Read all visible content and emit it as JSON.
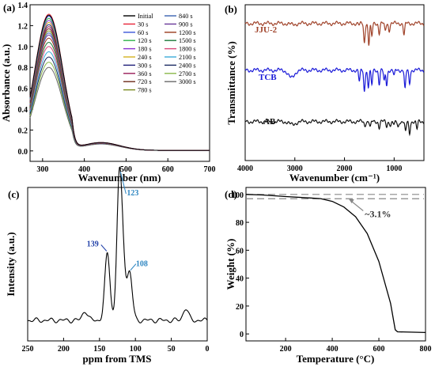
{
  "colors": {
    "axis": "#000000",
    "jju": "#A0432A",
    "tcb": "#1A1AD8",
    "ab": "#111111",
    "nmr_label": "#2E86C1",
    "nmr_label_139": "#1F3FA8",
    "dash": "#888888"
  },
  "chart_data": [
    {
      "panel_label": "(a)",
      "type": "line",
      "xlabel": "Wavenumber",
      "xunit": "(nm)",
      "ylabel": "Absorbance (a.u.)",
      "xlim": [
        270,
        700
      ],
      "ylim": [
        -0.1,
        1.4
      ],
      "xticks": [
        "300",
        "400",
        "500",
        "600",
        "700"
      ],
      "yticks": [
        "0.0",
        "0.2",
        "0.4",
        "0.6",
        "0.8",
        "1.0",
        "1.2",
        "1.4"
      ],
      "legend_position": "top-right",
      "series": [
        {
          "name": "Initial",
          "color": "#000000",
          "peak": 1.3,
          "peak2": 0.075
        },
        {
          "name": "30 s",
          "color": "#E8263A",
          "peak": 1.31,
          "peak2": 0.075
        },
        {
          "name": "60 s",
          "color": "#3A55D8",
          "peak": 1.29,
          "peak2": 0.074
        },
        {
          "name": "120 s",
          "color": "#2FB24A",
          "peak": 1.27,
          "peak2": 0.074
        },
        {
          "name": "180 s",
          "color": "#8B2FD0",
          "peak": 1.25,
          "peak2": 0.073
        },
        {
          "name": "240 s",
          "color": "#D4B21E",
          "peak": 1.23,
          "peak2": 0.072
        },
        {
          "name": "300 s",
          "color": "#1E1E78",
          "peak": 1.21,
          "peak2": 0.072
        },
        {
          "name": "360 s",
          "color": "#9A1E5A",
          "peak": 1.19,
          "peak2": 0.071
        },
        {
          "name": "720 s",
          "color": "#6E2A1A",
          "peak": 1.17,
          "peak2": 0.07
        },
        {
          "name": "780 s",
          "color": "#7A8A1E",
          "peak": 1.15,
          "peak2": 0.07
        },
        {
          "name": "840 s",
          "color": "#3A62B0",
          "peak": 1.13,
          "peak2": 0.069
        },
        {
          "name": "900 s",
          "color": "#6A3A9A",
          "peak": 1.11,
          "peak2": 0.068
        },
        {
          "name": "1200 s",
          "color": "#9A3A1E",
          "peak": 1.08,
          "peak2": 0.067
        },
        {
          "name": "1500 s",
          "color": "#1E7A3A",
          "peak": 1.04,
          "peak2": 0.066
        },
        {
          "name": "1800 s",
          "color": "#D8487A",
          "peak": 1.0,
          "peak2": 0.065
        },
        {
          "name": "2100 s",
          "color": "#3AAAD8",
          "peak": 0.95,
          "peak2": 0.064
        },
        {
          "name": "2400 s",
          "color": "#1A2A62",
          "peak": 0.9,
          "peak2": 0.063
        },
        {
          "name": "2700 s",
          "color": "#8AB84A",
          "peak": 0.85,
          "peak2": 0.062
        },
        {
          "name": "3000 s",
          "color": "#6A6A6A",
          "peak": 0.8,
          "peak2": 0.061
        }
      ]
    },
    {
      "panel_label": "(b)",
      "type": "line",
      "xlabel": "Wavenumber (cm⁻¹)",
      "ylabel": "Transmittance (%)",
      "xlim": [
        4000,
        400
      ],
      "xticks": [
        "4000",
        "3000",
        "2000",
        "1000"
      ],
      "series": [
        {
          "name": "JJU-2",
          "color_key": "jju",
          "baseline": 0.88,
          "dips": [
            [
              3050,
              0.03
            ],
            [
              1700,
              0.05
            ],
            [
              1600,
              0.5
            ],
            [
              1510,
              0.55
            ],
            [
              1450,
              0.35
            ],
            [
              1300,
              0.25
            ],
            [
              1180,
              0.2
            ],
            [
              1100,
              0.18
            ],
            [
              800,
              0.3
            ]
          ]
        },
        {
          "name": "TCB",
          "color_key": "tcb",
          "baseline": 0.58,
          "dips": [
            [
              3070,
              0.2
            ],
            [
              1700,
              0.3
            ],
            [
              1600,
              0.55
            ],
            [
              1520,
              0.45
            ],
            [
              1450,
              0.4
            ],
            [
              1300,
              0.35
            ],
            [
              1200,
              0.3
            ],
            [
              1150,
              0.38
            ],
            [
              1000,
              0.15
            ],
            [
              780,
              0.5
            ],
            [
              690,
              0.35
            ]
          ]
        },
        {
          "name": "AB",
          "color_key": "ab",
          "baseline": 0.25,
          "dips": [
            [
              3050,
              0.08
            ],
            [
              1590,
              0.1
            ],
            [
              1480,
              0.15
            ],
            [
              1300,
              0.15
            ],
            [
              1150,
              0.12
            ],
            [
              1070,
              0.1
            ],
            [
              1000,
              0.1
            ],
            [
              920,
              0.15
            ],
            [
              770,
              0.28
            ],
            [
              690,
              0.32
            ],
            [
              540,
              0.2
            ]
          ]
        }
      ]
    },
    {
      "panel_label": "(c)",
      "type": "line",
      "xlabel": "ppm from TMS",
      "ylabel": "Intensity (a.u.)",
      "xlim": [
        250,
        0
      ],
      "xticks": [
        "250",
        "200",
        "150",
        "100",
        "50",
        "0"
      ],
      "peaks": [
        [
          139,
          0.56
        ],
        [
          123,
          1.0
        ],
        [
          118,
          0.6
        ],
        [
          108,
          0.4
        ],
        [
          170,
          0.08
        ],
        [
          30,
          0.1
        ]
      ],
      "annotations": [
        {
          "ppm": 139,
          "text": "139",
          "color_key": "nmr_label_139"
        },
        {
          "ppm": 123,
          "text": "123",
          "color_key": "nmr_label"
        },
        {
          "ppm": 108,
          "text": "108",
          "color_key": "nmr_label"
        }
      ]
    },
    {
      "panel_label": "(d)",
      "type": "line",
      "xlabel": "Temperature (°C)",
      "ylabel": "Weight (%)",
      "xlim": [
        30,
        800
      ],
      "ylim": [
        -5,
        105
      ],
      "xticks": [
        "200",
        "400",
        "600",
        "800"
      ],
      "yticks": [
        "0",
        "20",
        "40",
        "60",
        "80",
        "100"
      ],
      "curve": [
        [
          30,
          100
        ],
        [
          100,
          99.6
        ],
        [
          200,
          98.5
        ],
        [
          300,
          97.5
        ],
        [
          350,
          97.0
        ],
        [
          400,
          95.0
        ],
        [
          450,
          91.0
        ],
        [
          500,
          84.0
        ],
        [
          550,
          72.0
        ],
        [
          600,
          52.0
        ],
        [
          650,
          22.0
        ],
        [
          670,
          3.0
        ],
        [
          680,
          1.5
        ],
        [
          800,
          1.0
        ]
      ],
      "reference_lines": [
        100,
        96.9
      ],
      "annotation": {
        "text": "~3.1%",
        "x": 560,
        "y": 86,
        "arrow_x": 470,
        "arrow_y": 97
      }
    }
  ]
}
